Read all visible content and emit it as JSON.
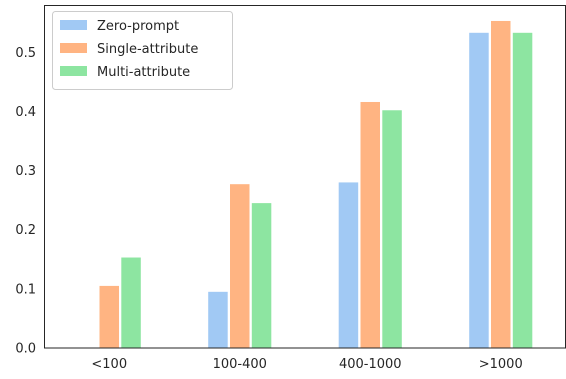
{
  "chart_data": {
    "type": "bar",
    "categories": [
      "<100",
      "100-400",
      "400-1000",
      ">1000"
    ],
    "series": [
      {
        "name": "Zero-prompt",
        "color": "#a1c9f4",
        "values": [
          0.0,
          0.095,
          0.28,
          0.533
        ]
      },
      {
        "name": "Single-attribute",
        "color": "#ffb482",
        "values": [
          0.105,
          0.277,
          0.416,
          0.553
        ]
      },
      {
        "name": "Multi-attribute",
        "color": "#8de5a1",
        "values": [
          0.153,
          0.245,
          0.402,
          0.533
        ]
      }
    ],
    "ylim": [
      0,
      0.58
    ],
    "yticks": [
      "0.0",
      "0.1",
      "0.2",
      "0.3",
      "0.4",
      "0.5"
    ],
    "title": "",
    "xlabel": "",
    "ylabel": "",
    "grid": false,
    "legend_position": "top-left"
  }
}
